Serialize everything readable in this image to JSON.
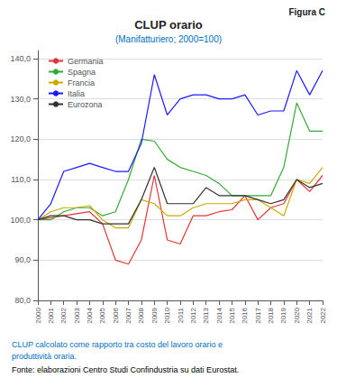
{
  "chart_data": {
    "type": "line",
    "title": "CLUP orario",
    "subtitle": "(Manifatturiero; 2000=100)",
    "annotations": [
      "Figura C",
      "CLUP calcolato come rapporto tra costo del lavoro orario e",
      "produttività oraria.",
      "Fonte: elaborazioni Centro Studi Confindustria su dati Eurostat."
    ],
    "x": [
      2000,
      2001,
      2002,
      2003,
      2004,
      2005,
      2006,
      2007,
      2008,
      2009,
      2010,
      2011,
      2012,
      2013,
      2014,
      2015,
      2016,
      2017,
      2018,
      2019,
      2020,
      2021,
      2022
    ],
    "xlim": [
      2000,
      2022
    ],
    "xticks": [
      2000,
      2001,
      2002,
      2003,
      2004,
      2005,
      2006,
      2007,
      2008,
      2009,
      2010,
      2011,
      2012,
      2013,
      2014,
      2015,
      2016,
      2017,
      2018,
      2019,
      2020,
      2021,
      2022
    ],
    "series": [
      {
        "name": "Germania",
        "color": "#e63333",
        "values": [
          100,
          100.5,
          101,
          101.5,
          102,
          99,
          90,
          89,
          95,
          111,
          95,
          94,
          101,
          101,
          102,
          102.5,
          106,
          100,
          103,
          104,
          110,
          107,
          111
        ]
      },
      {
        "name": "Spagna",
        "color": "#33aa33",
        "values": [
          100,
          100,
          102,
          103,
          103,
          101,
          102,
          110,
          120,
          119.5,
          115,
          113,
          112,
          111,
          109,
          106,
          106,
          106,
          106,
          113,
          129,
          122,
          122
        ]
      },
      {
        "name": "Francia",
        "color": "#ccaa00",
        "values": [
          100,
          102,
          103,
          103,
          103.5,
          100,
          98,
          98,
          105,
          104,
          101,
          101,
          103,
          104,
          104,
          104,
          105,
          105,
          103,
          101,
          110,
          109,
          113
        ]
      },
      {
        "name": "Italia",
        "color": "#1a1aff",
        "values": [
          100,
          104,
          112,
          113,
          114,
          113,
          112,
          112,
          119,
          136,
          126,
          130,
          131,
          131,
          130,
          130,
          131,
          126,
          127,
          127,
          137,
          131,
          137
        ]
      },
      {
        "name": "Eurozona",
        "color": "#333333",
        "values": [
          100,
          101,
          101,
          100,
          100,
          99,
          99,
          99,
          105,
          113,
          104,
          104,
          104,
          108,
          106,
          106,
          106,
          105,
          104,
          105,
          110,
          108,
          109
        ]
      }
    ],
    "ylim": [
      80,
      142
    ],
    "yticks": [
      {
        "value": 80,
        "label": "80,0"
      },
      {
        "value": 90,
        "label": "90,0"
      },
      {
        "value": 100,
        "label": "100,0"
      },
      {
        "value": 110,
        "label": "110,0"
      },
      {
        "value": 120,
        "label": "120,0"
      },
      {
        "value": 130,
        "label": "130,0"
      },
      {
        "value": 140,
        "label": "140,0"
      }
    ],
    "grid": true,
    "legend": "upper left"
  }
}
